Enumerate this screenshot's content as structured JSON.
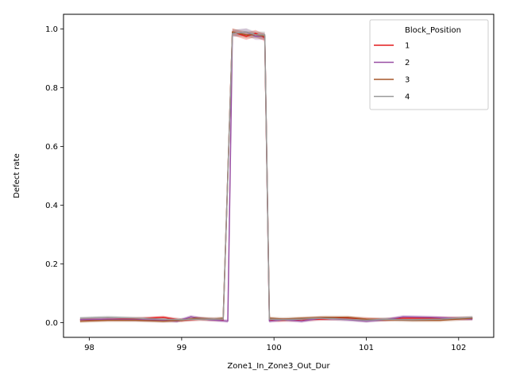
{
  "chart_data": {
    "type": "line",
    "xlabel": "Zone1_In_Zone3_Out_Dur",
    "ylabel": "Defect rate",
    "xlim": [
      97.72,
      102.38
    ],
    "ylim": [
      -0.05,
      1.05
    ],
    "xticks": [
      98,
      99,
      100,
      101,
      102
    ],
    "yticks": [
      0.0,
      0.2,
      0.4,
      0.6,
      0.8,
      1.0
    ],
    "grid": false,
    "legend": {
      "title": "Block_Position",
      "placement": "top-right"
    },
    "series": [
      {
        "name": "1",
        "color": "#e41a1c",
        "points": [
          [
            97.9,
            0.01
          ],
          [
            98.2,
            0.012
          ],
          [
            98.5,
            0.013
          ],
          [
            98.8,
            0.018
          ],
          [
            99.0,
            0.008
          ],
          [
            99.2,
            0.012
          ],
          [
            99.45,
            0.01
          ],
          [
            99.55,
            0.99
          ],
          [
            99.7,
            0.975
          ],
          [
            99.8,
            0.985
          ],
          [
            99.9,
            0.97
          ],
          [
            99.95,
            0.01
          ],
          [
            100.05,
            0.008
          ],
          [
            100.3,
            0.01
          ],
          [
            100.5,
            0.012
          ],
          [
            100.8,
            0.015
          ],
          [
            101.0,
            0.012
          ],
          [
            101.2,
            0.01
          ],
          [
            101.4,
            0.015
          ],
          [
            101.7,
            0.015
          ],
          [
            102.15,
            0.015
          ]
        ]
      },
      {
        "name": "2",
        "color": "#984ea3",
        "points": [
          [
            97.9,
            0.01
          ],
          [
            98.2,
            0.012
          ],
          [
            98.5,
            0.01
          ],
          [
            98.8,
            0.008
          ],
          [
            98.95,
            0.005
          ],
          [
            99.1,
            0.02
          ],
          [
            99.3,
            0.01
          ],
          [
            99.5,
            0.005
          ],
          [
            99.55,
            0.985
          ],
          [
            99.7,
            0.99
          ],
          [
            99.8,
            0.975
          ],
          [
            99.9,
            0.975
          ],
          [
            99.95,
            0.005
          ],
          [
            100.1,
            0.01
          ],
          [
            100.3,
            0.005
          ],
          [
            100.5,
            0.015
          ],
          [
            100.8,
            0.01
          ],
          [
            101.0,
            0.005
          ],
          [
            101.2,
            0.01
          ],
          [
            101.4,
            0.02
          ],
          [
            101.7,
            0.018
          ],
          [
            102.15,
            0.012
          ]
        ]
      },
      {
        "name": "3",
        "color": "#a65628",
        "points": [
          [
            97.9,
            0.005
          ],
          [
            98.2,
            0.008
          ],
          [
            98.5,
            0.008
          ],
          [
            98.8,
            0.005
          ],
          [
            99.0,
            0.008
          ],
          [
            99.15,
            0.015
          ],
          [
            99.35,
            0.012
          ],
          [
            99.45,
            0.015
          ],
          [
            99.55,
            0.99
          ],
          [
            99.7,
            0.98
          ],
          [
            99.8,
            0.98
          ],
          [
            99.9,
            0.975
          ],
          [
            99.95,
            0.015
          ],
          [
            100.1,
            0.012
          ],
          [
            100.3,
            0.015
          ],
          [
            100.55,
            0.018
          ],
          [
            100.8,
            0.018
          ],
          [
            101.0,
            0.012
          ],
          [
            101.2,
            0.01
          ],
          [
            101.5,
            0.008
          ],
          [
            101.8,
            0.008
          ],
          [
            102.15,
            0.015
          ]
        ]
      },
      {
        "name": "4",
        "color": "#999999",
        "points": [
          [
            97.9,
            0.015
          ],
          [
            98.2,
            0.018
          ],
          [
            98.5,
            0.015
          ],
          [
            98.8,
            0.012
          ],
          [
            99.0,
            0.01
          ],
          [
            99.2,
            0.012
          ],
          [
            99.45,
            0.012
          ],
          [
            99.55,
            0.985
          ],
          [
            99.7,
            0.99
          ],
          [
            99.8,
            0.98
          ],
          [
            99.9,
            0.98
          ],
          [
            99.95,
            0.012
          ],
          [
            100.1,
            0.01
          ],
          [
            100.3,
            0.012
          ],
          [
            100.5,
            0.015
          ],
          [
            100.8,
            0.012
          ],
          [
            101.0,
            0.008
          ],
          [
            101.2,
            0.012
          ],
          [
            101.5,
            0.01
          ],
          [
            101.8,
            0.012
          ],
          [
            102.15,
            0.018
          ]
        ]
      }
    ]
  }
}
